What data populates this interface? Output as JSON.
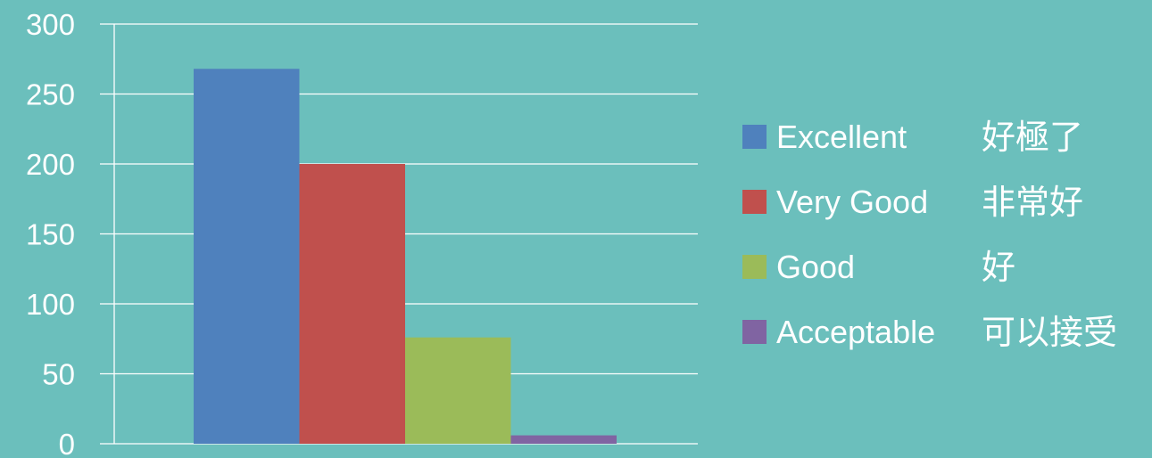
{
  "chart_data": {
    "type": "bar",
    "title": "",
    "xlabel": "",
    "ylabel": "",
    "ylim": [
      0,
      300
    ],
    "yticks": [
      0,
      50,
      100,
      150,
      200,
      250,
      300
    ],
    "grid": true,
    "legend_position": "right",
    "background_color": "#6bbfbc",
    "series": [
      {
        "name": "Excellent",
        "subname": "好極了",
        "value": 268,
        "color": "#4f81bd"
      },
      {
        "name": "Very Good",
        "subname": "非常好",
        "value": 200,
        "color": "#c0504d"
      },
      {
        "name": "Good",
        "subname": "好",
        "value": 76,
        "color": "#9bbb59"
      },
      {
        "name": "Acceptable",
        "subname": "可以接受",
        "value": 6,
        "color": "#8064a2"
      }
    ]
  }
}
